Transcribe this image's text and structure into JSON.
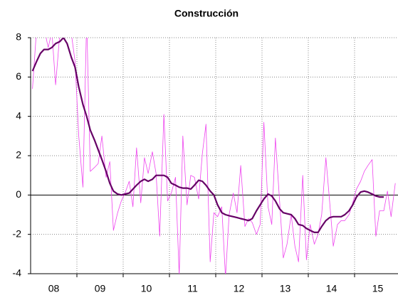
{
  "chart_data": {
    "type": "line",
    "title": "Construcción",
    "x": [
      8.04,
      8.13,
      8.21,
      8.29,
      8.38,
      8.46,
      8.54,
      8.63,
      8.71,
      8.79,
      8.88,
      8.96,
      9.04,
      9.13,
      9.21,
      9.29,
      9.38,
      9.46,
      9.54,
      9.63,
      9.71,
      9.79,
      9.88,
      9.96,
      10.04,
      10.13,
      10.21,
      10.29,
      10.38,
      10.46,
      10.54,
      10.63,
      10.71,
      10.79,
      10.88,
      10.96,
      11.04,
      11.13,
      11.21,
      11.29,
      11.38,
      11.46,
      11.54,
      11.63,
      11.71,
      11.79,
      11.88,
      11.96,
      12.04,
      12.13,
      12.21,
      12.29,
      12.38,
      12.46,
      12.54,
      12.63,
      12.71,
      12.79,
      12.88,
      12.96,
      13.04,
      13.13,
      13.21,
      13.29,
      13.38,
      13.46,
      13.54,
      13.63,
      13.71,
      13.79,
      13.88,
      13.96,
      14.04,
      14.13,
      14.21,
      14.29,
      14.38,
      14.46,
      14.54,
      14.63,
      14.71,
      14.79,
      14.88,
      14.96,
      15.04,
      15.13,
      15.21,
      15.29,
      15.38,
      15.46,
      15.54,
      15.63,
      15.71,
      15.79,
      15.88
    ],
    "series": [
      {
        "color": "#ee44ee",
        "width": 0.8,
        "values": [
          5.4,
          8.5,
          8.2,
          8.5,
          7.5,
          8.3,
          5.6,
          8.2,
          9,
          8.5,
          8.2,
          6.8,
          3,
          0.4,
          9,
          1.2,
          1.4,
          1.6,
          3.0,
          0.9,
          1.7,
          -1.8,
          -0.9,
          -0.3,
          0.1,
          0.7,
          -0.6,
          2.4,
          -0.4,
          1.9,
          1.1,
          2.2,
          1.1,
          -2.1,
          4.1,
          -0.3,
          0.1,
          0.9,
          -4.1,
          3.0,
          -0.5,
          1.0,
          0.9,
          -0.2,
          2.1,
          3.6,
          -3.4,
          -0.9,
          -1.1,
          -0.6,
          -4.2,
          -1.0,
          0.1,
          -0.9,
          1.5,
          -1.6,
          -1.2,
          -1.4,
          -2.0,
          -1.5,
          3.7,
          -0.6,
          -1.5,
          2.9,
          -0.3,
          -3.2,
          -2.5,
          -1.0,
          -2.6,
          -3.4,
          1.0,
          -3.3,
          -1.5,
          -2.5,
          -2.0,
          -1.0,
          1.9,
          -0.3,
          -2.6,
          -1.5,
          -1.3,
          -1.3,
          -1.0,
          -0.4,
          0.3,
          0.7,
          1.2,
          1.5,
          1.8,
          -2.1,
          -0.8,
          -0.8,
          0.2,
          -1.1,
          0.6
        ]
      },
      {
        "color": "#660066",
        "width": 2.2,
        "values": [
          6.3,
          6.8,
          7.2,
          7.4,
          7.4,
          7.5,
          7.7,
          7.8,
          8.0,
          7.7,
          7.0,
          6.5,
          5.5,
          4.6,
          4.0,
          3.3,
          2.8,
          2.3,
          1.8,
          1.2,
          0.6,
          0.2,
          0.05,
          0,
          0.05,
          0.1,
          0.3,
          0.5,
          0.7,
          0.8,
          0.7,
          0.8,
          1.0,
          1.0,
          1.0,
          0.9,
          0.6,
          0.5,
          0.4,
          0.35,
          0.35,
          0.3,
          0.5,
          0.75,
          0.7,
          0.5,
          0.2,
          0,
          -0.5,
          -0.9,
          -1.0,
          -1.05,
          -1.1,
          -1.15,
          -1.2,
          -1.25,
          -1.3,
          -1.2,
          -0.8,
          -0.5,
          -0.2,
          0.05,
          -0.05,
          -0.3,
          -0.7,
          -0.9,
          -0.95,
          -1.0,
          -1.2,
          -1.5,
          -1.55,
          -1.7,
          -1.8,
          -1.9,
          -1.9,
          -1.6,
          -1.3,
          -1.15,
          -1.1,
          -1.1,
          -1.1,
          -1.0,
          -0.8,
          -0.5,
          -0.1,
          0.15,
          0.2,
          0.15,
          0.05,
          -0.05,
          -0.1,
          -0.1,
          null,
          null,
          null
        ]
      }
    ],
    "xlim": [
      8,
      16
    ],
    "xticks": [
      {
        "value": 8.5,
        "label": "08"
      },
      {
        "value": 9.5,
        "label": "09"
      },
      {
        "value": 10.5,
        "label": "10"
      },
      {
        "value": 11.5,
        "label": "11"
      },
      {
        "value": 12.5,
        "label": "12"
      },
      {
        "value": 13.5,
        "label": "13"
      },
      {
        "value": 14.5,
        "label": "14"
      },
      {
        "value": 15.5,
        "label": "15"
      }
    ],
    "xgrid": [
      9,
      10,
      11,
      12,
      13,
      14,
      15
    ],
    "ylim": [
      -4,
      8
    ],
    "yticks": [
      -4,
      -2,
      0,
      2,
      4,
      6,
      8
    ],
    "grid": true
  }
}
